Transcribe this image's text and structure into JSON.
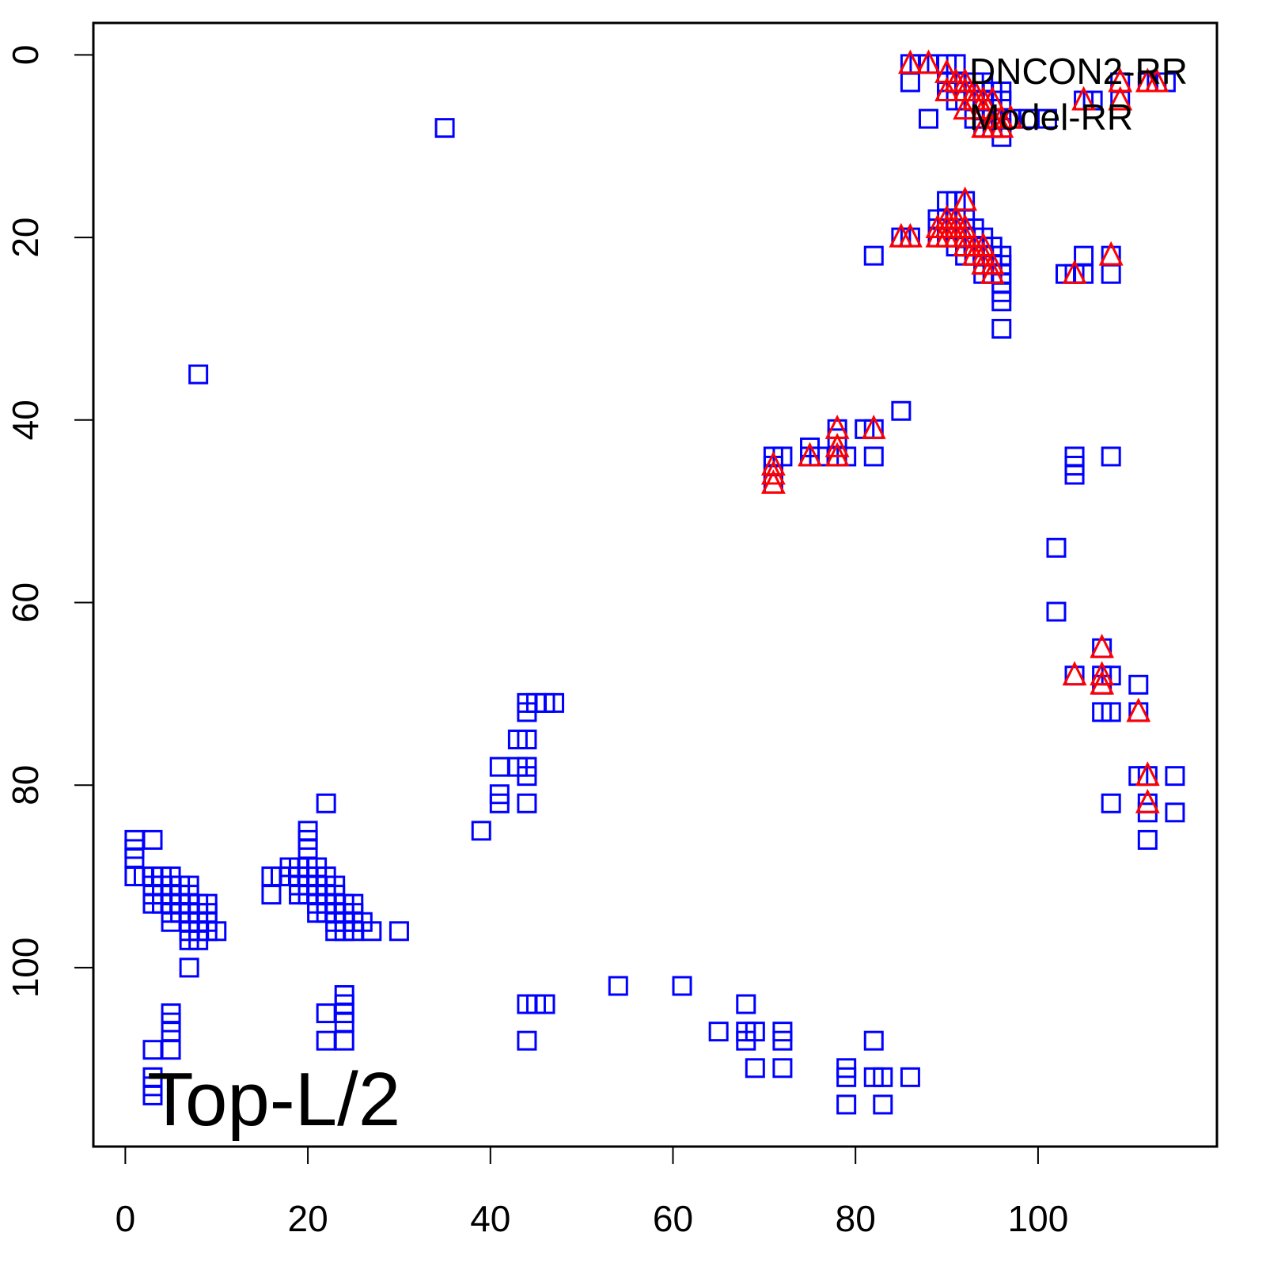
{
  "chart_data": {
    "type": "scatter",
    "title": "",
    "xlabel": "",
    "ylabel": "",
    "xlim": [
      -3.5,
      119.6
    ],
    "ylim": [
      119.6,
      -3.5
    ],
    "y_inverted": true,
    "grid": false,
    "x_ticks": [
      0,
      20,
      40,
      60,
      80,
      100
    ],
    "y_ticks": [
      0,
      20,
      40,
      60,
      80,
      100
    ],
    "annotation": "Top-L/2",
    "legend": {
      "placement": "top-right",
      "entries": [
        "DNCON2-RR",
        "Model-RR"
      ]
    },
    "series": [
      {
        "marker": "square",
        "color": "#0000ff",
        "points": [
          [
            1,
            86
          ],
          [
            1,
            87
          ],
          [
            1,
            88
          ],
          [
            3,
            86
          ],
          [
            1,
            90
          ],
          [
            2,
            90
          ],
          [
            3,
            90
          ],
          [
            4,
            90
          ],
          [
            5,
            90
          ],
          [
            3,
            91
          ],
          [
            4,
            91
          ],
          [
            5,
            91
          ],
          [
            6,
            91
          ],
          [
            7,
            91
          ],
          [
            3,
            92
          ],
          [
            4,
            92
          ],
          [
            5,
            92
          ],
          [
            6,
            92
          ],
          [
            7,
            92
          ],
          [
            3,
            93
          ],
          [
            4,
            93
          ],
          [
            5,
            93
          ],
          [
            6,
            93
          ],
          [
            7,
            93
          ],
          [
            8,
            93
          ],
          [
            9,
            93
          ],
          [
            5,
            94
          ],
          [
            6,
            94
          ],
          [
            7,
            94
          ],
          [
            8,
            94
          ],
          [
            9,
            94
          ],
          [
            5,
            95
          ],
          [
            7,
            95
          ],
          [
            8,
            95
          ],
          [
            9,
            95
          ],
          [
            7,
            96
          ],
          [
            8,
            96
          ],
          [
            9,
            96
          ],
          [
            10,
            96
          ],
          [
            7,
            97
          ],
          [
            8,
            97
          ],
          [
            7,
            100
          ],
          [
            5,
            105
          ],
          [
            5,
            106
          ],
          [
            5,
            107
          ],
          [
            3,
            109
          ],
          [
            5,
            109
          ],
          [
            3,
            112
          ],
          [
            3,
            113
          ],
          [
            3,
            114
          ],
          [
            22,
            82
          ],
          [
            20,
            85
          ],
          [
            20,
            86
          ],
          [
            20,
            87
          ],
          [
            18,
            89
          ],
          [
            19,
            89
          ],
          [
            20,
            89
          ],
          [
            21,
            89
          ],
          [
            16,
            90
          ],
          [
            17,
            90
          ],
          [
            18,
            90
          ],
          [
            19,
            90
          ],
          [
            20,
            90
          ],
          [
            21,
            90
          ],
          [
            22,
            90
          ],
          [
            19,
            91
          ],
          [
            20,
            91
          ],
          [
            21,
            91
          ],
          [
            22,
            91
          ],
          [
            23,
            91
          ],
          [
            16,
            92
          ],
          [
            19,
            92
          ],
          [
            20,
            92
          ],
          [
            21,
            92
          ],
          [
            22,
            92
          ],
          [
            23,
            92
          ],
          [
            21,
            93
          ],
          [
            22,
            93
          ],
          [
            23,
            93
          ],
          [
            24,
            93
          ],
          [
            25,
            93
          ],
          [
            21,
            94
          ],
          [
            22,
            94
          ],
          [
            23,
            94
          ],
          [
            24,
            94
          ],
          [
            25,
            94
          ],
          [
            23,
            95
          ],
          [
            24,
            95
          ],
          [
            25,
            95
          ],
          [
            26,
            95
          ],
          [
            23,
            96
          ],
          [
            24,
            96
          ],
          [
            25,
            96
          ],
          [
            27,
            96
          ],
          [
            30,
            96
          ],
          [
            24,
            103
          ],
          [
            24,
            104
          ],
          [
            22,
            105
          ],
          [
            24,
            105
          ],
          [
            24,
            106
          ],
          [
            22,
            108
          ],
          [
            24,
            108
          ],
          [
            35,
            8
          ],
          [
            8,
            35
          ],
          [
            44,
            71
          ],
          [
            45,
            71
          ],
          [
            46,
            71
          ],
          [
            47,
            71
          ],
          [
            44,
            72
          ],
          [
            43,
            75
          ],
          [
            44,
            75
          ],
          [
            41,
            78
          ],
          [
            43,
            78
          ],
          [
            44,
            78
          ],
          [
            44,
            79
          ],
          [
            41,
            81
          ],
          [
            41,
            82
          ],
          [
            44,
            82
          ],
          [
            39,
            85
          ],
          [
            44,
            104
          ],
          [
            45,
            104
          ],
          [
            46,
            104
          ],
          [
            44,
            108
          ],
          [
            54,
            102
          ],
          [
            61,
            102
          ],
          [
            68,
            104
          ],
          [
            65,
            107
          ],
          [
            68,
            107
          ],
          [
            69,
            107
          ],
          [
            68,
            108
          ],
          [
            72,
            107
          ],
          [
            72,
            108
          ],
          [
            69,
            111
          ],
          [
            72,
            111
          ],
          [
            82,
            108
          ],
          [
            79,
            111
          ],
          [
            79,
            112
          ],
          [
            82,
            112
          ],
          [
            83,
            112
          ],
          [
            86,
            112
          ],
          [
            79,
            115
          ],
          [
            83,
            115
          ],
          [
            86,
            1
          ],
          [
            87,
            1
          ],
          [
            88,
            1
          ],
          [
            90,
            1
          ],
          [
            91,
            1
          ],
          [
            86,
            3
          ],
          [
            90,
            3
          ],
          [
            91,
            3
          ],
          [
            92,
            3
          ],
          [
            93,
            3
          ],
          [
            94,
            3
          ],
          [
            90,
            4
          ],
          [
            91,
            4
          ],
          [
            92,
            4
          ],
          [
            93,
            4
          ],
          [
            94,
            4
          ],
          [
            95,
            4
          ],
          [
            96,
            4
          ],
          [
            91,
            5
          ],
          [
            92,
            5
          ],
          [
            93,
            5
          ],
          [
            94,
            5
          ],
          [
            95,
            5
          ],
          [
            96,
            5
          ],
          [
            88,
            7
          ],
          [
            93,
            7
          ],
          [
            94,
            7
          ],
          [
            95,
            7
          ],
          [
            96,
            7
          ],
          [
            97,
            7
          ],
          [
            99,
            7
          ],
          [
            101,
            7
          ],
          [
            94,
            8
          ],
          [
            95,
            8
          ],
          [
            96,
            8
          ],
          [
            96,
            9
          ],
          [
            109,
            3
          ],
          [
            109,
            5
          ],
          [
            112,
            3
          ],
          [
            113,
            3
          ],
          [
            114,
            3
          ],
          [
            105,
            5
          ],
          [
            106,
            5
          ],
          [
            90,
            16
          ],
          [
            91,
            16
          ],
          [
            92,
            16
          ],
          [
            89,
            18
          ],
          [
            90,
            18
          ],
          [
            91,
            18
          ],
          [
            92,
            18
          ],
          [
            89,
            19
          ],
          [
            90,
            19
          ],
          [
            91,
            19
          ],
          [
            92,
            19
          ],
          [
            93,
            19
          ],
          [
            85,
            20
          ],
          [
            86,
            20
          ],
          [
            89,
            20
          ],
          [
            90,
            20
          ],
          [
            91,
            20
          ],
          [
            92,
            20
          ],
          [
            93,
            20
          ],
          [
            94,
            20
          ],
          [
            91,
            21
          ],
          [
            92,
            21
          ],
          [
            93,
            21
          ],
          [
            94,
            21
          ],
          [
            95,
            21
          ],
          [
            82,
            22
          ],
          [
            92,
            22
          ],
          [
            93,
            22
          ],
          [
            94,
            22
          ],
          [
            95,
            22
          ],
          [
            96,
            22
          ],
          [
            94,
            23
          ],
          [
            95,
            23
          ],
          [
            96,
            23
          ],
          [
            94,
            24
          ],
          [
            95,
            24
          ],
          [
            96,
            24
          ],
          [
            96,
            25
          ],
          [
            96,
            26
          ],
          [
            96,
            27
          ],
          [
            96,
            30
          ],
          [
            105,
            22
          ],
          [
            108,
            22
          ],
          [
            103,
            24
          ],
          [
            104,
            24
          ],
          [
            105,
            24
          ],
          [
            108,
            24
          ],
          [
            71,
            44
          ],
          [
            72,
            44
          ],
          [
            71,
            45
          ],
          [
            71,
            46
          ],
          [
            71,
            47
          ],
          [
            75,
            43
          ],
          [
            75,
            44
          ],
          [
            76,
            44
          ],
          [
            78,
            41
          ],
          [
            78,
            42
          ],
          [
            78,
            44
          ],
          [
            79,
            44
          ],
          [
            81,
            41
          ],
          [
            82,
            41
          ],
          [
            82,
            44
          ],
          [
            85,
            39
          ],
          [
            104,
            44
          ],
          [
            104,
            45
          ],
          [
            104,
            46
          ],
          [
            108,
            44
          ],
          [
            102,
            54
          ],
          [
            102,
            61
          ],
          [
            107,
            65
          ],
          [
            104,
            68
          ],
          [
            107,
            68
          ],
          [
            108,
            68
          ],
          [
            107,
            69
          ],
          [
            107,
            72
          ],
          [
            108,
            72
          ],
          [
            111,
            69
          ],
          [
            111,
            72
          ],
          [
            111,
            79
          ],
          [
            112,
            79
          ],
          [
            115,
            79
          ],
          [
            108,
            82
          ],
          [
            112,
            82
          ],
          [
            112,
            83
          ],
          [
            115,
            83
          ],
          [
            112,
            86
          ]
        ]
      },
      {
        "marker": "triangle",
        "color": "#ff0000",
        "points": [
          [
            86,
            1
          ],
          [
            88,
            1
          ],
          [
            90,
            2
          ],
          [
            91,
            3
          ],
          [
            92,
            3
          ],
          [
            90,
            4
          ],
          [
            92,
            4
          ],
          [
            93,
            4
          ],
          [
            93,
            5
          ],
          [
            94,
            5
          ],
          [
            95,
            5
          ],
          [
            92,
            6
          ],
          [
            94,
            6
          ],
          [
            95,
            7
          ],
          [
            96,
            7
          ],
          [
            97,
            7
          ],
          [
            94,
            8
          ],
          [
            95,
            8
          ],
          [
            96,
            8
          ],
          [
            105,
            5
          ],
          [
            109,
            3
          ],
          [
            109,
            5
          ],
          [
            112,
            3
          ],
          [
            113,
            3
          ],
          [
            92,
            16
          ],
          [
            90,
            18
          ],
          [
            91,
            18
          ],
          [
            89,
            19
          ],
          [
            90,
            19
          ],
          [
            91,
            19
          ],
          [
            92,
            19
          ],
          [
            85,
            20
          ],
          [
            86,
            20
          ],
          [
            89,
            20
          ],
          [
            90,
            20
          ],
          [
            91,
            20
          ],
          [
            92,
            20
          ],
          [
            92,
            21
          ],
          [
            93,
            21
          ],
          [
            94,
            21
          ],
          [
            93,
            22
          ],
          [
            94,
            22
          ],
          [
            94,
            23
          ],
          [
            95,
            23
          ],
          [
            95,
            24
          ],
          [
            104,
            24
          ],
          [
            108,
            22
          ],
          [
            71,
            45
          ],
          [
            71,
            46
          ],
          [
            71,
            47
          ],
          [
            75,
            44
          ],
          [
            78,
            41
          ],
          [
            78,
            43
          ],
          [
            78,
            44
          ],
          [
            82,
            41
          ],
          [
            104,
            68
          ],
          [
            107,
            65
          ],
          [
            107,
            68
          ],
          [
            107,
            69
          ],
          [
            111,
            72
          ],
          [
            112,
            79
          ],
          [
            112,
            82
          ]
        ]
      }
    ]
  }
}
